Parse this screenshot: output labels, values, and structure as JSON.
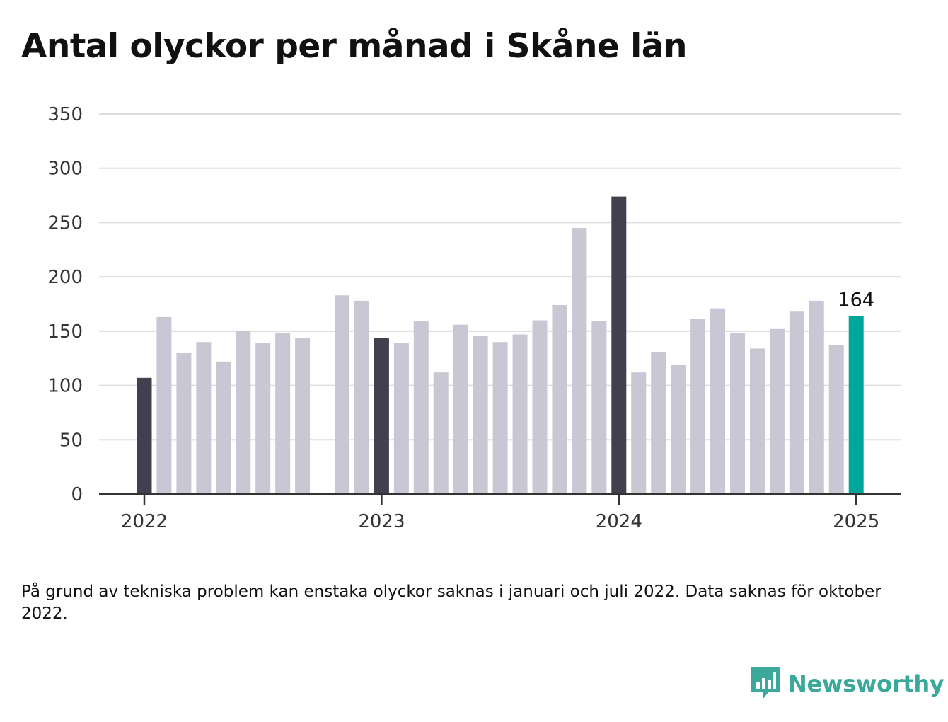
{
  "title": "Antal olyckor per månad i Skåne län",
  "note": "På grund av tekniska problem kan enstaka olyckor saknas i januari och juli 2022. Data saknas för oktober 2022.",
  "brand": {
    "name": "Newsworthy",
    "icon": "newsworthy-logo-icon",
    "color": "#3aa89b"
  },
  "chart_data": {
    "type": "bar",
    "title": "Antal olyckor per månad i Skåne län",
    "xlabel": "",
    "ylabel": "",
    "ylim": [
      0,
      350
    ],
    "yticks": [
      0,
      50,
      100,
      150,
      200,
      250,
      300,
      350
    ],
    "xticks": [
      "2022",
      "2023",
      "2024",
      "2025"
    ],
    "grid": true,
    "legend": "none",
    "colors": {
      "january": "#42404e",
      "regular": "#c8c7d3",
      "latest": "#00a59b",
      "grid": "#dddddd",
      "axis": "#333333"
    },
    "highlight_label": "164",
    "points": [
      {
        "month": "2022-01",
        "value": 107,
        "kind": "january"
      },
      {
        "month": "2022-02",
        "value": 163,
        "kind": "regular"
      },
      {
        "month": "2022-03",
        "value": 130,
        "kind": "regular"
      },
      {
        "month": "2022-04",
        "value": 140,
        "kind": "regular"
      },
      {
        "month": "2022-05",
        "value": 122,
        "kind": "regular"
      },
      {
        "month": "2022-06",
        "value": 150,
        "kind": "regular"
      },
      {
        "month": "2022-07",
        "value": 139,
        "kind": "regular"
      },
      {
        "month": "2022-08",
        "value": 148,
        "kind": "regular"
      },
      {
        "month": "2022-09",
        "value": 144,
        "kind": "regular"
      },
      {
        "month": "2022-10",
        "value": null,
        "kind": "missing"
      },
      {
        "month": "2022-11",
        "value": 183,
        "kind": "regular"
      },
      {
        "month": "2022-12",
        "value": 178,
        "kind": "regular"
      },
      {
        "month": "2023-01",
        "value": 144,
        "kind": "january"
      },
      {
        "month": "2023-02",
        "value": 139,
        "kind": "regular"
      },
      {
        "month": "2023-03",
        "value": 159,
        "kind": "regular"
      },
      {
        "month": "2023-04",
        "value": 112,
        "kind": "regular"
      },
      {
        "month": "2023-05",
        "value": 156,
        "kind": "regular"
      },
      {
        "month": "2023-06",
        "value": 146,
        "kind": "regular"
      },
      {
        "month": "2023-07",
        "value": 140,
        "kind": "regular"
      },
      {
        "month": "2023-08",
        "value": 147,
        "kind": "regular"
      },
      {
        "month": "2023-09",
        "value": 160,
        "kind": "regular"
      },
      {
        "month": "2023-10",
        "value": 174,
        "kind": "regular"
      },
      {
        "month": "2023-11",
        "value": 245,
        "kind": "regular"
      },
      {
        "month": "2023-12",
        "value": 159,
        "kind": "regular"
      },
      {
        "month": "2024-01",
        "value": 274,
        "kind": "january"
      },
      {
        "month": "2024-02",
        "value": 112,
        "kind": "regular"
      },
      {
        "month": "2024-03",
        "value": 131,
        "kind": "regular"
      },
      {
        "month": "2024-04",
        "value": 119,
        "kind": "regular"
      },
      {
        "month": "2024-05",
        "value": 161,
        "kind": "regular"
      },
      {
        "month": "2024-06",
        "value": 171,
        "kind": "regular"
      },
      {
        "month": "2024-07",
        "value": 148,
        "kind": "regular"
      },
      {
        "month": "2024-08",
        "value": 134,
        "kind": "regular"
      },
      {
        "month": "2024-09",
        "value": 152,
        "kind": "regular"
      },
      {
        "month": "2024-10",
        "value": 168,
        "kind": "regular"
      },
      {
        "month": "2024-11",
        "value": 178,
        "kind": "regular"
      },
      {
        "month": "2024-12",
        "value": 137,
        "kind": "regular"
      },
      {
        "month": "2025-01",
        "value": 164,
        "kind": "latest"
      }
    ]
  }
}
